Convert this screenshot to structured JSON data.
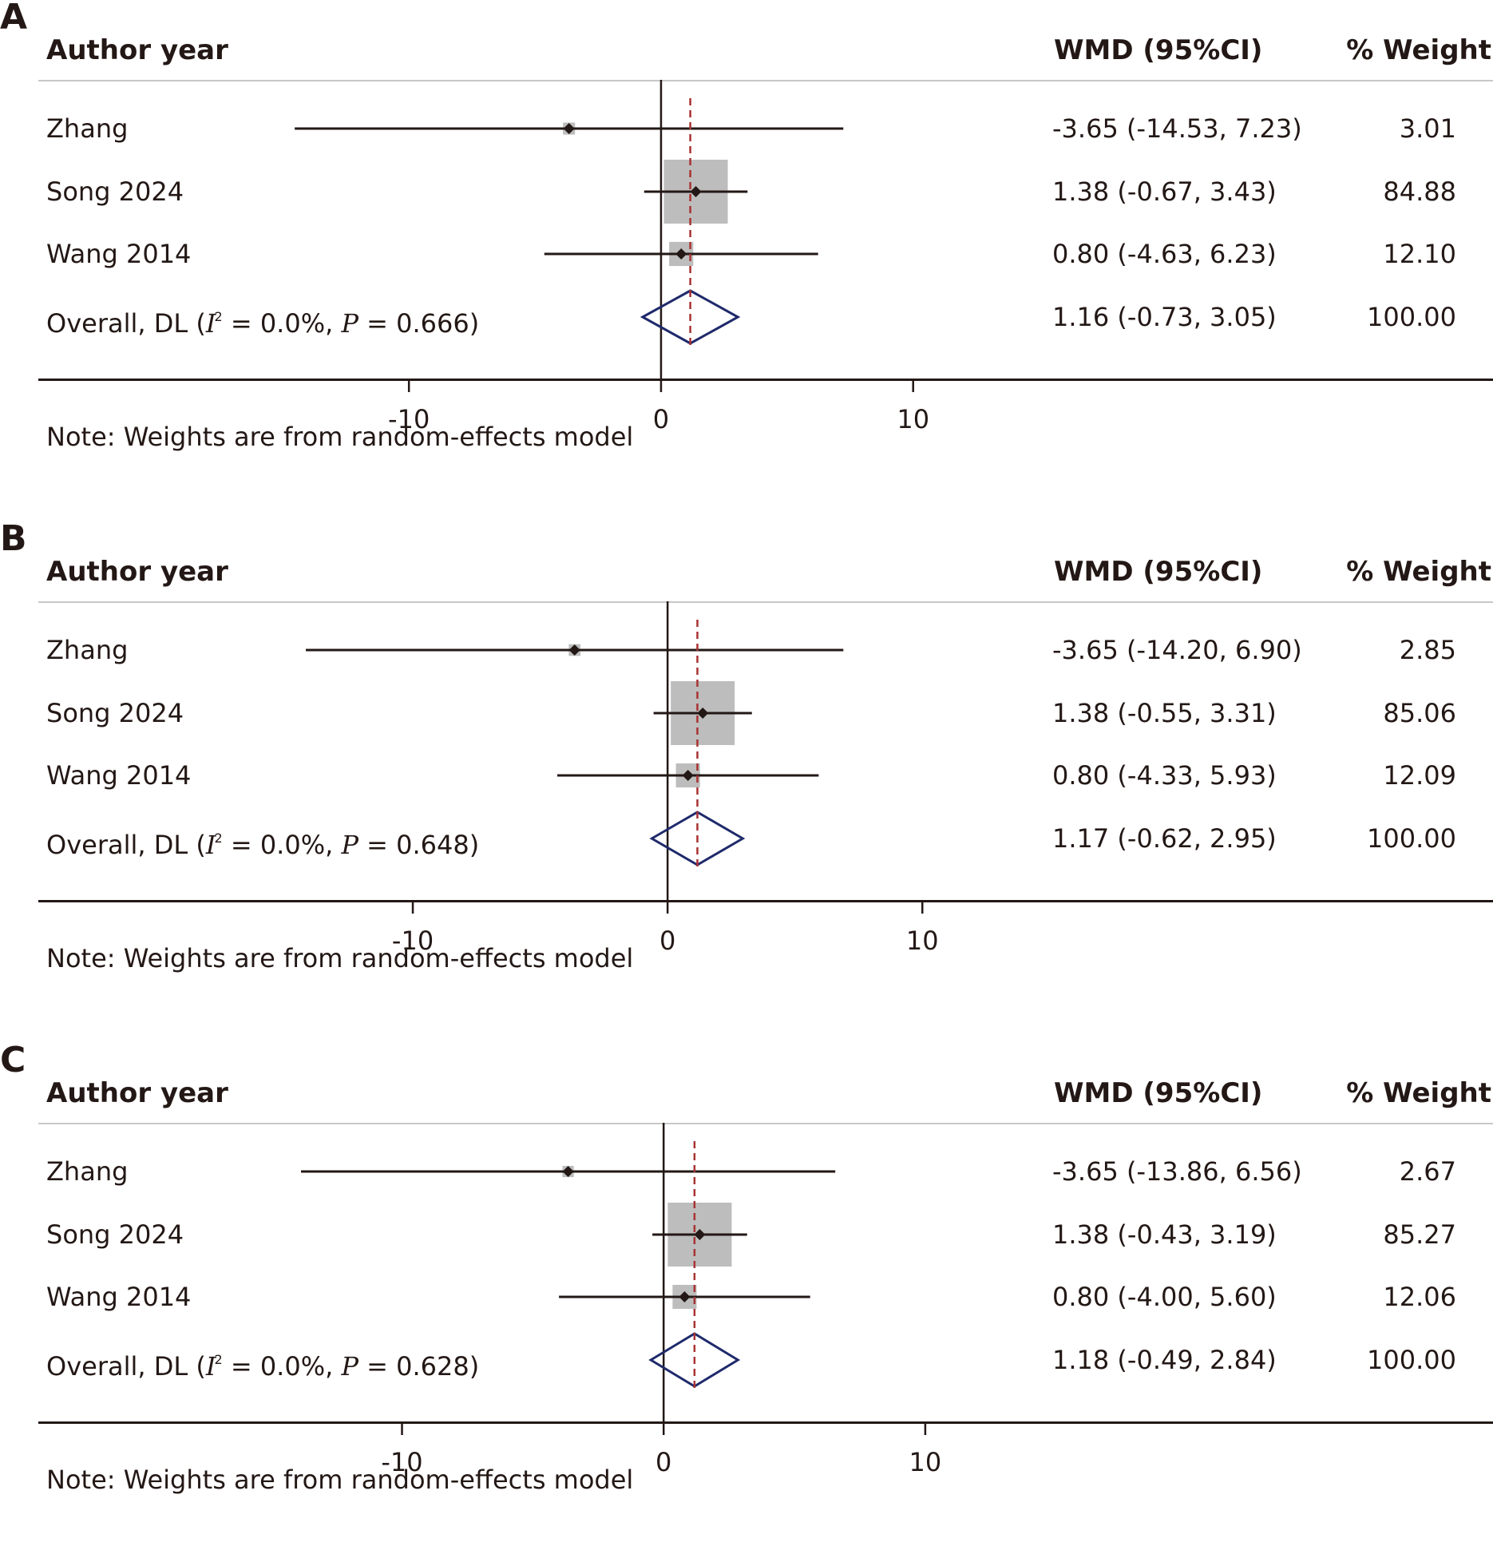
{
  "headers": {
    "author": "Author year",
    "wmd": "WMD (95%CI)",
    "weight": "% Weight"
  },
  "note": "Note: Weights are from random-effects model",
  "colors": {
    "text": "#231815",
    "box": "#bdbdbd",
    "diamond": "#1f2a6b",
    "ref_line": "#a83232",
    "header_rule": "#c8c8c8"
  },
  "chart_data": [
    {
      "type": "forest",
      "panel": "A",
      "xlabel": "",
      "ylabel": "",
      "x_ticks": [
        -10,
        0,
        10
      ],
      "x_tick_labels": [
        "-10",
        "0",
        "10"
      ],
      "xlim": [
        -24.7,
        33.0
      ],
      "studies": [
        {
          "label": "Zhang",
          "estimate": -3.65,
          "lower": -14.53,
          "upper": 7.23,
          "weight": 3.01,
          "ci_text": "-3.65 (-14.53, 7.23)",
          "weight_text": "3.01"
        },
        {
          "label": "Song 2024",
          "estimate": 1.38,
          "lower": -0.67,
          "upper": 3.43,
          "weight": 84.88,
          "ci_text": "1.38 (-0.67, 3.43)",
          "weight_text": "84.88"
        },
        {
          "label": "Wang 2014",
          "estimate": 0.8,
          "lower": -4.63,
          "upper": 6.23,
          "weight": 12.1,
          "ci_text": "0.80 (-4.63, 6.23)",
          "weight_text": "12.10"
        }
      ],
      "overall": {
        "label_prefix": "Overall, DL (",
        "i2_symbol": "I",
        "i2_sup": "2",
        "i2_text": " = 0.0%, ",
        "p_symbol": "P",
        "p_text": " = 0.666)",
        "estimate": 1.16,
        "lower": -0.73,
        "upper": 3.05,
        "ci_text": "1.16 (-0.73, 3.05)",
        "weight_text": "100.00"
      }
    },
    {
      "type": "forest",
      "panel": "B",
      "xlabel": "",
      "ylabel": "",
      "x_ticks": [
        -10,
        0,
        10
      ],
      "x_tick_labels": [
        "-10",
        "0",
        "10"
      ],
      "xlim": [
        -24.7,
        32.4
      ],
      "studies": [
        {
          "label": "Zhang",
          "estimate": -3.65,
          "lower": -14.2,
          "upper": 6.9,
          "weight": 2.85,
          "ci_text": "-3.65 (-14.20, 6.90)",
          "weight_text": "2.85"
        },
        {
          "label": "Song 2024",
          "estimate": 1.38,
          "lower": -0.55,
          "upper": 3.31,
          "weight": 85.06,
          "ci_text": "1.38 (-0.55, 3.31)",
          "weight_text": "85.06"
        },
        {
          "label": "Wang 2014",
          "estimate": 0.8,
          "lower": -4.33,
          "upper": 5.93,
          "weight": 12.09,
          "ci_text": "0.80 (-4.33, 5.93)",
          "weight_text": "12.09"
        }
      ],
      "overall": {
        "label_prefix": "Overall, DL (",
        "i2_symbol": "I",
        "i2_sup": "2",
        "i2_text": " = 0.0%, ",
        "p_symbol": "P",
        "p_text": " = 0.648)",
        "estimate": 1.17,
        "lower": -0.62,
        "upper": 2.95,
        "ci_text": "1.17 (-0.62, 2.95)",
        "weight_text": "100.00"
      }
    },
    {
      "type": "forest",
      "panel": "C",
      "xlabel": "",
      "ylabel": "",
      "x_ticks": [
        -10,
        0,
        10
      ],
      "x_tick_labels": [
        "-10",
        "0",
        "10"
      ],
      "xlim": [
        -23.9,
        31.7
      ],
      "studies": [
        {
          "label": "Zhang",
          "estimate": -3.65,
          "lower": -13.86,
          "upper": 6.56,
          "weight": 2.67,
          "ci_text": "-3.65 (-13.86, 6.56)",
          "weight_text": "2.67"
        },
        {
          "label": "Song 2024",
          "estimate": 1.38,
          "lower": -0.43,
          "upper": 3.19,
          "weight": 85.27,
          "ci_text": "1.38 (-0.43, 3.19)",
          "weight_text": "85.27"
        },
        {
          "label": "Wang 2014",
          "estimate": 0.8,
          "lower": -4.0,
          "upper": 5.6,
          "weight": 12.06,
          "ci_text": "0.80 (-4.00, 5.60)",
          "weight_text": "12.06"
        }
      ],
      "overall": {
        "label_prefix": "Overall, DL (",
        "i2_symbol": "I",
        "i2_sup": "2",
        "i2_text": " = 0.0%, ",
        "p_symbol": "P",
        "p_text": " = 0.628)",
        "estimate": 1.18,
        "lower": -0.49,
        "upper": 2.84,
        "ci_text": "1.18 (-0.49, 2.84)",
        "weight_text": "100.00"
      }
    }
  ]
}
